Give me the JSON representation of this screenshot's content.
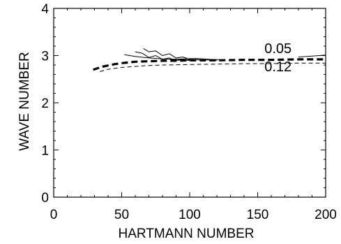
{
  "chart_data": {
    "type": "line",
    "title": "",
    "xlabel": "HARTMANN NUMBER",
    "ylabel": "WAVE NUMBER",
    "xlim": [
      0,
      200
    ],
    "ylim": [
      0,
      4
    ],
    "x_ticks": [
      "0",
      "50",
      "100",
      "150",
      "200"
    ],
    "y_ticks": [
      "0",
      "1",
      "2",
      "3",
      "4"
    ],
    "grid": false,
    "legend": "none",
    "annotations": [
      {
        "text": "0.05",
        "x": 155,
        "y": 3.05
      },
      {
        "text": "0.12",
        "x": 155,
        "y": 2.67
      }
    ],
    "series": [
      {
        "style": "thick-dashed",
        "x": [
          29,
          35,
          40,
          45,
          50,
          60,
          70,
          80,
          90,
          100,
          120,
          140,
          160,
          180,
          200
        ],
        "y": [
          2.7,
          2.76,
          2.79,
          2.82,
          2.84,
          2.87,
          2.88,
          2.89,
          2.89,
          2.9,
          2.9,
          2.91,
          2.91,
          2.92,
          2.92
        ]
      },
      {
        "style": "thin-dashed",
        "x": [
          34,
          40,
          50,
          60,
          70,
          80,
          100,
          120,
          140,
          160,
          180,
          200
        ],
        "y": [
          2.66,
          2.71,
          2.75,
          2.77,
          2.79,
          2.8,
          2.81,
          2.82,
          2.83,
          2.83,
          2.84,
          2.84
        ]
      },
      {
        "style": "thin-solid",
        "x": [
          52,
          60,
          70,
          80,
          90,
          100,
          110,
          120
        ],
        "y": [
          3.02,
          2.98,
          2.95,
          2.93,
          2.92,
          2.91,
          2.91,
          2.9
        ]
      },
      {
        "style": "thin-solid",
        "x": [
          60,
          65,
          70,
          75,
          80,
          85,
          90,
          95,
          100
        ],
        "y": [
          3.08,
          3.05,
          2.96,
          3.0,
          2.92,
          2.95,
          2.89,
          2.92,
          2.89
        ]
      },
      {
        "style": "thin-solid",
        "x": [
          66,
          70,
          75,
          80,
          85,
          90,
          95,
          100,
          110
        ],
        "y": [
          3.15,
          3.08,
          3.1,
          3.0,
          3.04,
          2.95,
          2.97,
          2.92,
          2.91
        ]
      },
      {
        "style": "thin-solid",
        "x": [
          85,
          95,
          105,
          115,
          125
        ],
        "y": [
          2.92,
          2.93,
          2.94,
          2.92,
          2.91
        ]
      },
      {
        "style": "thin-solid",
        "x": [
          180,
          190,
          200
        ],
        "y": [
          2.97,
          2.99,
          3.01
        ]
      }
    ]
  }
}
